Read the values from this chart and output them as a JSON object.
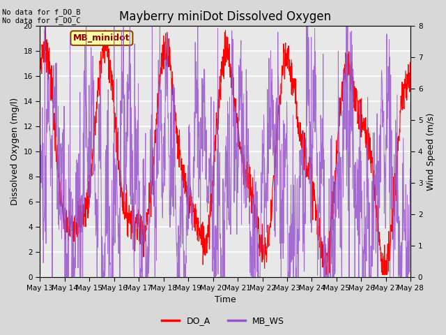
{
  "title": "Mayberry miniDot Dissolved Oxygen",
  "xlabel": "Time",
  "ylabel_left": "Dissolved Oxygen (mg/l)",
  "ylabel_right": "Wind Speed (m/s)",
  "annotation_top_left": "No data for f_DO_B\nNo data for f_DO_C",
  "legend_box_text": "MB_minidot",
  "ylim_left": [
    0,
    20
  ],
  "ylim_right": [
    0.0,
    8.0
  ],
  "yticks_left": [
    0,
    2,
    4,
    6,
    8,
    10,
    12,
    14,
    16,
    18,
    20
  ],
  "yticks_right": [
    0.0,
    1.0,
    2.0,
    3.0,
    4.0,
    5.0,
    6.0,
    7.0,
    8.0
  ],
  "xtick_labels": [
    "May 13",
    "May 14",
    "May 15",
    "May 16",
    "May 17",
    "May 18",
    "May 19",
    "May 20",
    "May 21",
    "May 22",
    "May 23",
    "May 24",
    "May 25",
    "May 26",
    "May 27",
    "May 28"
  ],
  "DO_A_color": "#ff0000",
  "MB_WS_color": "#9955cc",
  "fig_facecolor": "#d8d8d8",
  "axes_bg_color": "#e8e8e8",
  "legend_box_facecolor": "#ffffaa",
  "legend_box_edgecolor": "#884400",
  "grid_color": "#ffffff",
  "title_fontsize": 12,
  "label_fontsize": 9,
  "tick_fontsize": 7.5,
  "annot_fontsize": 7.5,
  "legend_fontsize": 9
}
